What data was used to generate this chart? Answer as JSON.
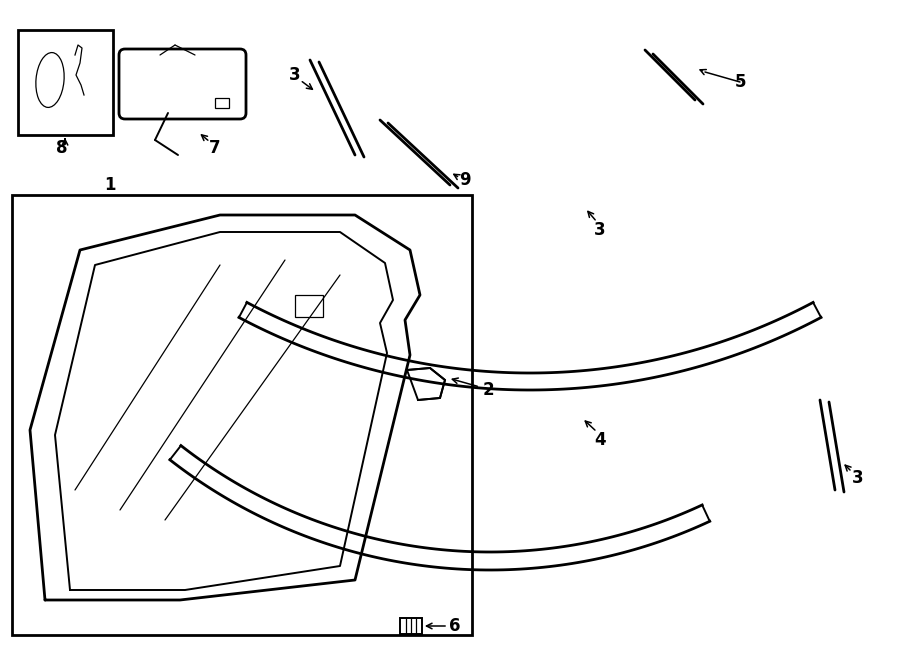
{
  "bg_color": "#ffffff",
  "line_color": "#000000",
  "fig_width": 9.0,
  "fig_height": 6.61,
  "dpi": 100,
  "lw": 1.4,
  "lw_thin": 0.9,
  "lw_thick": 2.0,
  "fs": 12
}
